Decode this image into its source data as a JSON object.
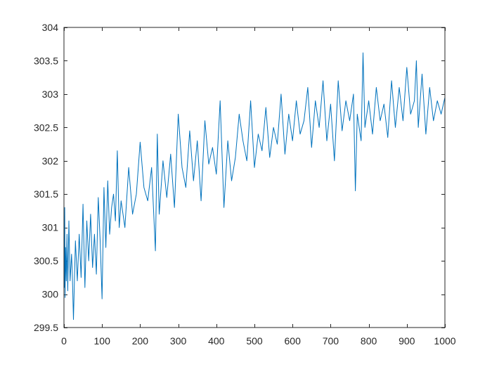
{
  "chart_data": {
    "type": "line",
    "title": "",
    "xlabel": "",
    "ylabel": "",
    "xlim": [
      0,
      1000
    ],
    "ylim": [
      299.5,
      304
    ],
    "grid": false,
    "legend": "none",
    "x_ticks": [
      0,
      100,
      200,
      300,
      400,
      500,
      600,
      700,
      800,
      900,
      1000
    ],
    "y_ticks": [
      299.5,
      300,
      300.5,
      301,
      301.5,
      302,
      302.5,
      303,
      303.5,
      304
    ],
    "x_tick_labels": [
      "0",
      "100",
      "200",
      "300",
      "400",
      "500",
      "600",
      "700",
      "800",
      "900",
      "1000"
    ],
    "y_tick_labels": [
      "299.5",
      "300",
      "300.5",
      "301",
      "301.5",
      "302",
      "302.5",
      "303",
      "303.5",
      "304"
    ],
    "series": [
      {
        "color": "#0072BD",
        "x": [
          0,
          1,
          2,
          3,
          4,
          6,
          8,
          10,
          13,
          16,
          20,
          22,
          25,
          30,
          35,
          40,
          45,
          50,
          55,
          60,
          65,
          70,
          75,
          80,
          85,
          90,
          95,
          100,
          105,
          110,
          115,
          120,
          125,
          130,
          135,
          140,
          145,
          150,
          160,
          170,
          180,
          190,
          200,
          210,
          220,
          230,
          240,
          245,
          250,
          260,
          270,
          280,
          290,
          300,
          310,
          320,
          330,
          340,
          350,
          360,
          370,
          380,
          390,
          400,
          410,
          420,
          430,
          440,
          450,
          460,
          470,
          480,
          490,
          500,
          510,
          520,
          530,
          540,
          550,
          560,
          570,
          580,
          590,
          600,
          610,
          620,
          630,
          640,
          650,
          660,
          670,
          680,
          690,
          700,
          710,
          720,
          730,
          740,
          750,
          760,
          765,
          770,
          780,
          785,
          790,
          800,
          810,
          820,
          830,
          840,
          850,
          860,
          870,
          880,
          890,
          900,
          910,
          920,
          925,
          930,
          940,
          950,
          960,
          970,
          980,
          990,
          1000
        ],
        "y": [
          300.4,
          300.1,
          301.3,
          299.95,
          300.7,
          300.2,
          300.9,
          300.05,
          301.1,
          300.2,
          300.6,
          300.3,
          299.62,
          300.8,
          300.2,
          300.9,
          300.25,
          301.35,
          300.1,
          301.1,
          300.5,
          301.2,
          300.4,
          300.9,
          300.3,
          301.45,
          300.8,
          299.93,
          301.6,
          300.7,
          301.7,
          300.9,
          301.3,
          301.5,
          301.1,
          302.15,
          301.0,
          301.4,
          301.0,
          301.9,
          301.2,
          301.5,
          302.28,
          301.6,
          301.4,
          301.9,
          300.65,
          302.4,
          301.2,
          302.0,
          301.45,
          302.1,
          301.3,
          302.7,
          301.9,
          301.6,
          302.45,
          301.7,
          302.3,
          301.4,
          302.6,
          301.95,
          302.2,
          301.8,
          302.9,
          301.3,
          302.3,
          301.7,
          302.05,
          302.7,
          302.3,
          302.0,
          302.9,
          301.9,
          302.4,
          302.15,
          302.8,
          302.05,
          302.5,
          302.25,
          303.0,
          302.1,
          302.7,
          302.3,
          302.9,
          302.4,
          302.6,
          303.1,
          302.2,
          302.9,
          302.5,
          303.2,
          302.3,
          302.85,
          302.0,
          303.2,
          302.45,
          302.9,
          302.6,
          303.0,
          301.55,
          302.7,
          302.3,
          303.62,
          302.5,
          302.9,
          302.4,
          303.1,
          302.6,
          302.85,
          302.35,
          303.2,
          302.5,
          303.1,
          302.6,
          303.4,
          302.7,
          302.9,
          303.5,
          302.5,
          303.3,
          302.4,
          303.1,
          302.6,
          302.9,
          302.7,
          302.95
        ]
      }
    ]
  }
}
